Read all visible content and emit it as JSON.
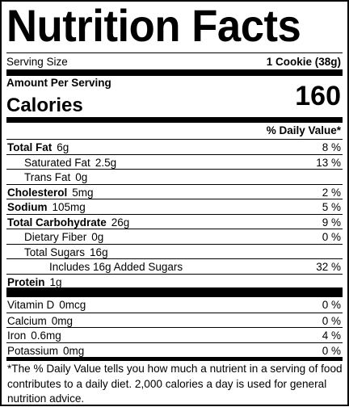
{
  "header": {
    "title": "Nutrition Facts",
    "serving_size_label": "Serving Size",
    "serving_size": "1 Cookie (38g)",
    "amount_per_serving": "Amount Per Serving",
    "calories_label": "Calories",
    "calories": 160,
    "daily_value_heading": "% Daily Value*"
  },
  "nutrients": [
    {
      "name": "Total Fat",
      "amount": "6g",
      "daily_value": "8 %"
    },
    {
      "name": "Saturated Fat",
      "amount": "2.5g",
      "daily_value": "13 %"
    },
    {
      "name": "Trans Fat",
      "amount": "0g"
    },
    {
      "name": "Cholesterol",
      "amount": "5mg",
      "daily_value": "2 %"
    },
    {
      "name": "Sodium",
      "amount": "105mg",
      "daily_value": "5 %"
    },
    {
      "name": "Total Carbohydrate",
      "amount": "26g",
      "daily_value": "9 %"
    },
    {
      "name": "Dietary Fiber",
      "amount": "0g",
      "daily_value": "0 %"
    },
    {
      "name": "Total Sugars",
      "amount": "16g"
    },
    {
      "name": "Includes 16g Added Sugars",
      "daily_value": "32 %"
    },
    {
      "name": "Protein",
      "amount": "1g"
    }
  ],
  "vitamins": [
    {
      "name": "Vitamin D",
      "amount": "0mcg",
      "daily_value": "0 %"
    },
    {
      "name": "Calcium",
      "amount": "0mg",
      "daily_value": "0 %"
    },
    {
      "name": "Iron",
      "amount": "0.6mg",
      "daily_value": "4 %"
    },
    {
      "name": "Potassium",
      "amount": "0mg",
      "daily_value": "0 %"
    }
  ],
  "footnote": "*The % Daily Value tells you how much a nutrient in a serving of food contributes to a daily diet. 2,000 calories a day is used for general nutrition advice."
}
